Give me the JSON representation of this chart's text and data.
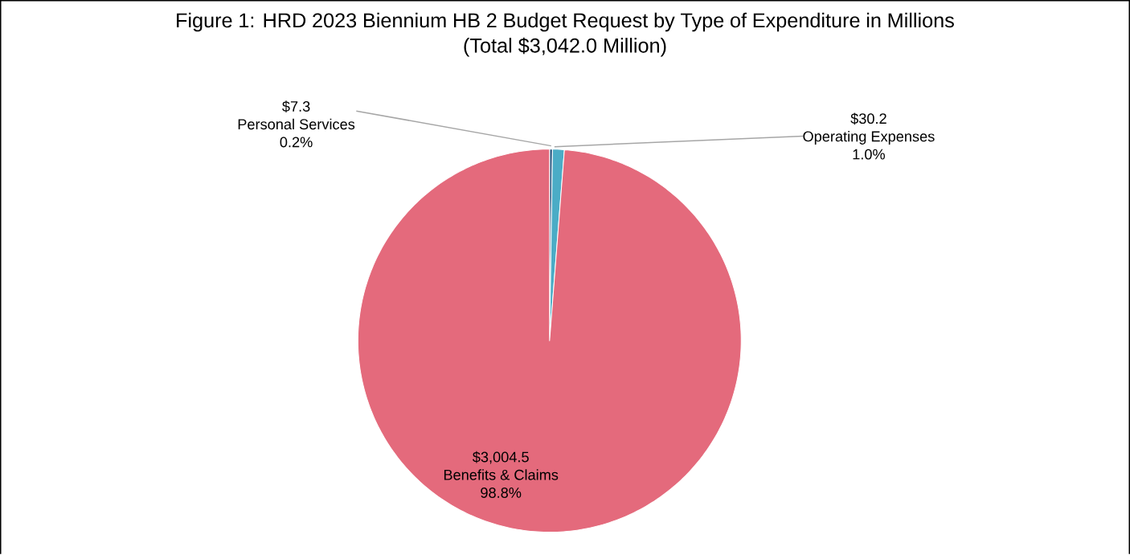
{
  "chart_data": {
    "type": "pie",
    "title": "Figure 1: HRD 2023 Biennium HB 2 Budget Request by Type of Expenditure in Millions (Total $3,042.0 Million)",
    "categories": [
      "Personal Services",
      "Operating Expenses",
      "Benefits & Claims"
    ],
    "values": [
      7.3,
      30.2,
      3004.5
    ],
    "colors": [
      "#1f4e79",
      "#4bacc6",
      "#e46a7c"
    ],
    "value_labels": [
      "$7.3",
      "$30.2",
      "$3,004.5"
    ],
    "annotations": [
      {
        "text": "0.2%",
        "x": "Personal Services"
      },
      {
        "text": "1.0%",
        "x": "Operating Expenses"
      },
      {
        "text": "98.8%",
        "x": "Benefits & Claims"
      }
    ]
  }
}
